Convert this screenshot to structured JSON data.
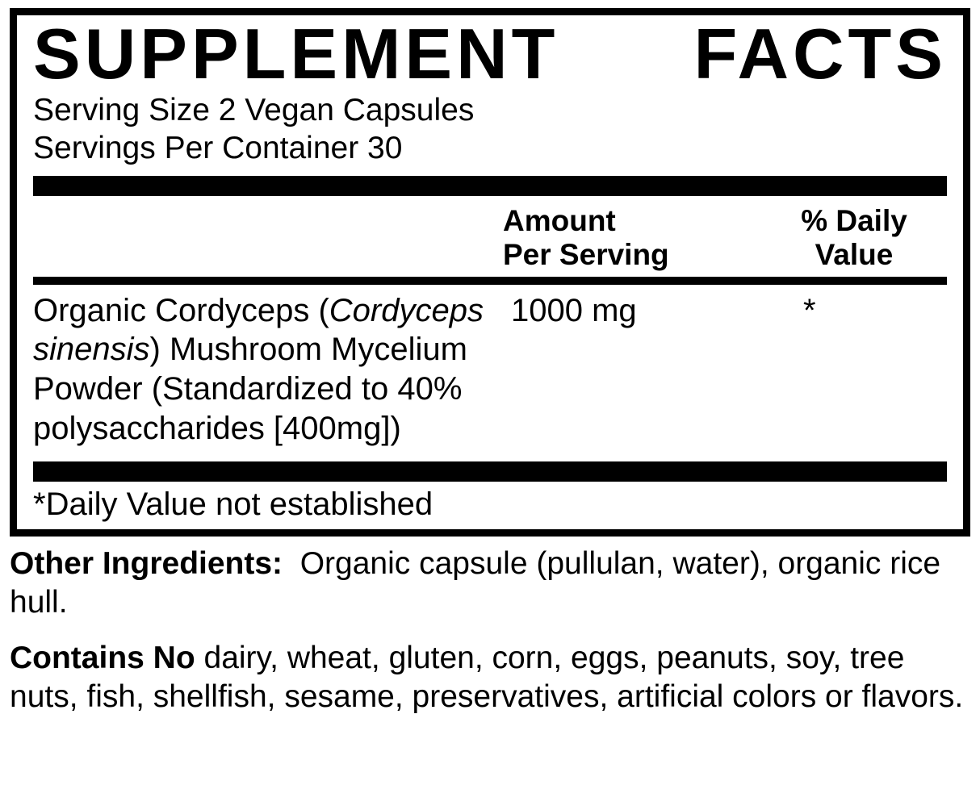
{
  "panel": {
    "title": "SUPPLEMENT FACTS",
    "serving_size": "Serving Size 2 Vegan Capsules",
    "servings_per_container": "Servings Per Container 30",
    "headers": {
      "amount_line1": "Amount",
      "amount_line2": "Per Serving",
      "dv_line1": "% Daily",
      "dv_line2": "Value"
    },
    "ingredient": {
      "name_part1": "Organic Cordyceps (",
      "name_italic": "Cordyceps sinensis",
      "name_part2": ") Mushroom Mycelium Powder (Standardized to 40% polysaccharides [400mg])",
      "amount": "1000 mg",
      "dv": "*"
    },
    "footnote": "*Daily Value not established"
  },
  "other_ingredients": {
    "label": "Other Ingredients:",
    "text": "Organic capsule (pullulan, water), organic rice hull."
  },
  "contains_no": {
    "label": "Contains No",
    "text": "dairy, wheat, gluten, corn, eggs, peanuts, soy, tree nuts, fish, shellfish, sesame, preservatives, artificial colors or flavors."
  },
  "colors": {
    "text": "#000000",
    "background": "#ffffff"
  }
}
